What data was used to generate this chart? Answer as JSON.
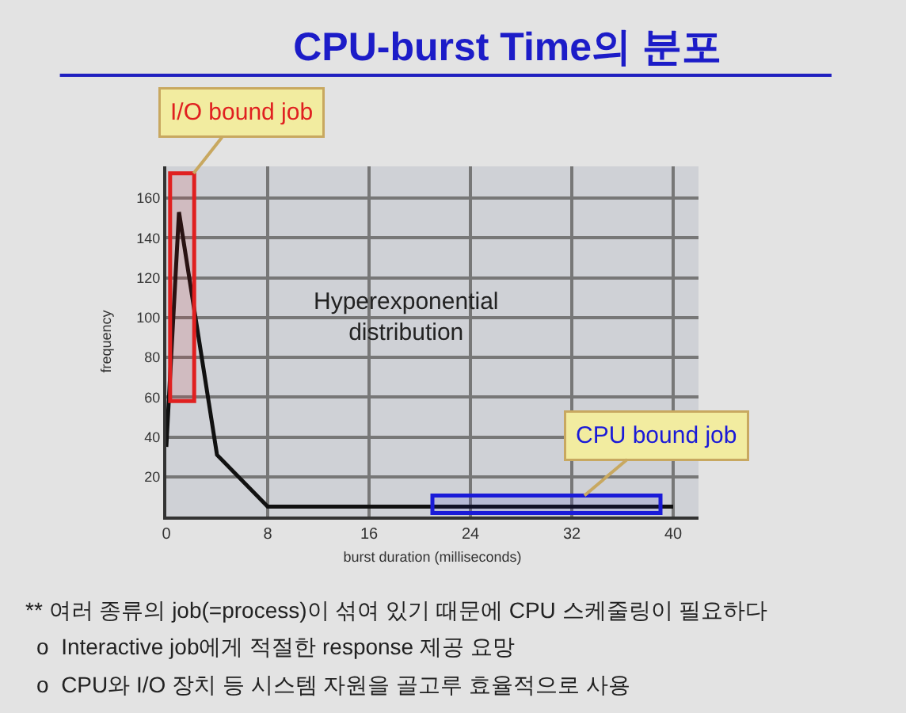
{
  "chart_data": {
    "type": "line",
    "title": "CPU-burst Time의 분포",
    "xlabel": "burst duration (milliseconds)",
    "ylabel": "frequency",
    "x": [
      0,
      1,
      4,
      8,
      40
    ],
    "series": [
      {
        "color": "#111111",
        "values": [
          35,
          153,
          31,
          5,
          5
        ]
      }
    ],
    "xlim": [
      0,
      42
    ],
    "xticks": [
      0,
      8,
      16,
      24,
      32,
      40
    ],
    "ylim": [
      0,
      176
    ],
    "yticks": [
      20,
      40,
      60,
      80,
      100,
      120,
      140,
      160
    ],
    "grid": true,
    "marker": "none",
    "line_style": "solid",
    "bands": [
      {
        "axis": "x",
        "from": 0.3,
        "to": 2.2,
        "label": "I/O bound job",
        "color": "#e02020"
      },
      {
        "axis": "x",
        "from": 21,
        "to": 39,
        "label": "CPU bound job",
        "color": "#1a1ad8"
      }
    ],
    "annotations": [
      "Hyperexponential\ndistribution",
      "** 여러 종류의 job(=process)이 섞여 있기 때문에 CPU 스케줄링이 필요하다",
      "ο  Interactive job에게 적절한 response 제공 요망",
      "ο  CPU와 I/O 장치 등 시스템 자원을 골고루 효율적으로 사용"
    ]
  }
}
